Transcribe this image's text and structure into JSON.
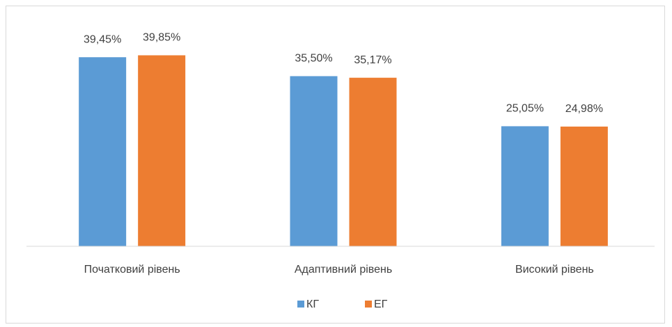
{
  "chart_data": {
    "type": "bar",
    "categories": [
      "Початковий рівень",
      "Адаптивний рівень",
      "Високий рівень"
    ],
    "series": [
      {
        "name": "КГ",
        "color": "#5b9bd5",
        "values": [
          39.45,
          35.5,
          25.05
        ],
        "value_labels": [
          "39,45%",
          "35,50%",
          "25,05%"
        ]
      },
      {
        "name": "ЕГ",
        "color": "#ed7d31",
        "values": [
          39.85,
          35.17,
          24.98
        ],
        "value_labels": [
          "39,85%",
          "35,17%",
          "24,98%"
        ]
      }
    ],
    "ylim": [
      0,
      45
    ],
    "grid": false,
    "legend": "bottom"
  }
}
